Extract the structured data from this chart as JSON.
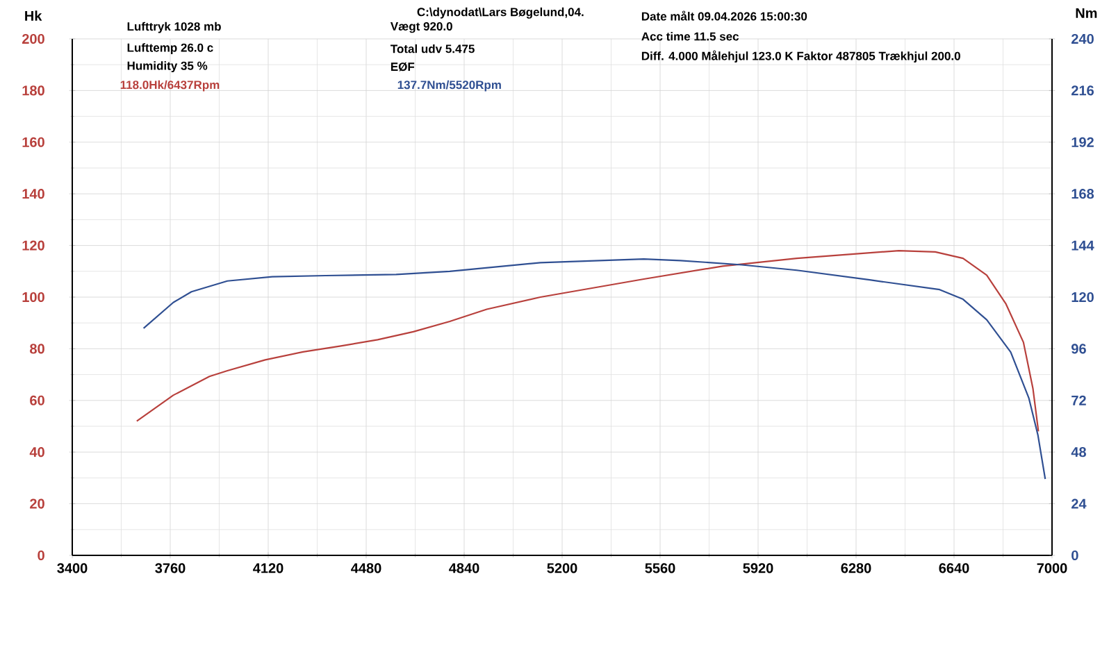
{
  "chart_data": {
    "type": "line",
    "xlim": [
      3400,
      7000
    ],
    "xticks": [
      3400,
      3760,
      4120,
      4480,
      4840,
      5200,
      5560,
      5920,
      6280,
      6640,
      7000
    ],
    "ylim": [
      0,
      200
    ],
    "yticks": [
      0,
      20,
      40,
      60,
      80,
      100,
      120,
      140,
      160,
      180,
      200
    ],
    "y2lim": [
      0,
      240
    ],
    "y2ticks": [
      0,
      24,
      48,
      72,
      96,
      120,
      144,
      168,
      192,
      216,
      240
    ],
    "ylabel": "Hk",
    "y2label": "Nm",
    "grid": true,
    "series": [
      {
        "color": "#b8403c",
        "x": [
          3637,
          3771,
          3904,
          3970,
          4109,
          4248,
          4387,
          4522,
          4653,
          4787,
          4923,
          5120,
          5500,
          5790,
          6062,
          6437,
          6571,
          6673,
          6760,
          6830,
          6895,
          6930,
          6950
        ],
        "values": [
          52,
          62,
          69.3,
          71.5,
          75.7,
          78.8,
          81.1,
          83.5,
          86.6,
          90.6,
          95.3,
          100,
          107,
          112,
          115,
          118,
          117.5,
          115,
          108.5,
          97.5,
          82.5,
          64.5,
          48
        ]
      },
      {
        "color": "#2f4f92",
        "axis": "y2",
        "x": [
          3662,
          3771,
          3838,
          3970,
          4135,
          4331,
          4590,
          4787,
          5120,
          5500,
          5635,
          5860,
          6062,
          6330,
          6587,
          6673,
          6760,
          6848,
          6915,
          6948,
          6975
        ],
        "values": [
          105.5,
          117.5,
          122.5,
          127.5,
          129.5,
          130,
          130.5,
          132,
          136,
          137.7,
          137,
          135,
          132.5,
          128,
          123.5,
          119,
          109.5,
          94.5,
          73,
          56,
          35.5
        ]
      }
    ],
    "annotations": [
      "C:\\dynodat\\Lars Bøgelund,04.",
      "Lufttryk  1028 mb",
      "Lufttemp  26.0 c",
      "Humidity   35 %",
      "Vægt     920.0",
      "Total udv 5.475",
      "EØF",
      "Date målt 09.04.2026 15:00:30",
      "Acc time   11.5 sec",
      "Diff.    4.000   Målehjul  123.0   K Faktor 487805   Trækhjul  200.0",
      "118.0Hk/6437Rpm",
      "137.7Nm/5520Rpm"
    ]
  }
}
